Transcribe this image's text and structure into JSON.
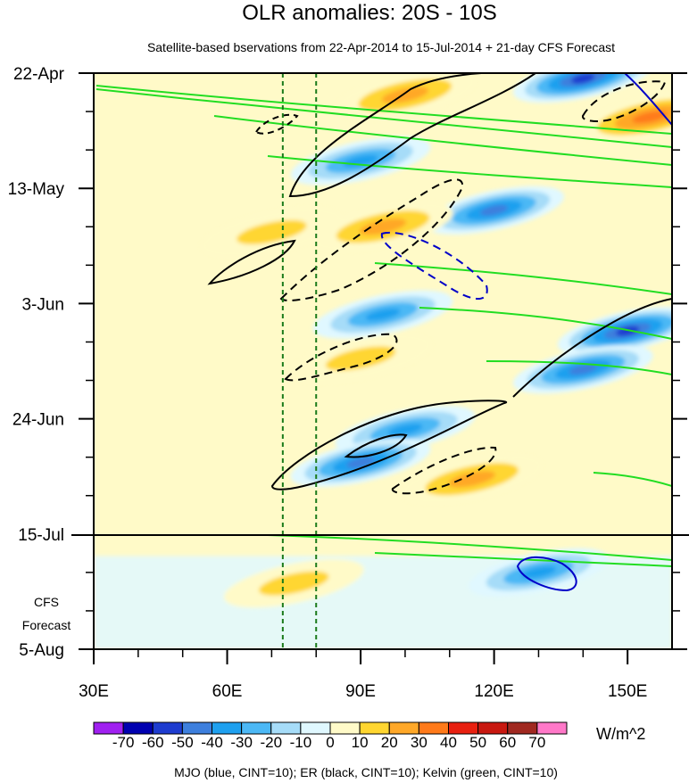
{
  "chart_data": {
    "type": "heatmap",
    "title": "OLR anomalies: 20S - 10S",
    "subtitle": "Satellite-based bservations from 22-Apr-2014 to 15-Jul-2014 + 21-day CFS Forecast",
    "x_ticks": [
      "30E",
      "60E",
      "90E",
      "120E",
      "150E"
    ],
    "x_tick_values": [
      30,
      60,
      90,
      120,
      150
    ],
    "x_range": [
      30,
      160
    ],
    "y_ticks": [
      "22-Apr",
      "13-May",
      "3-Jun",
      "24-Jun",
      "15-Jul",
      "5-Aug"
    ],
    "y_tick_days": [
      0,
      21,
      42,
      63,
      84,
      105
    ],
    "y_range_days": [
      0,
      105
    ],
    "observation_end_label": "15-Jul",
    "forecast_label_line1": "CFS",
    "forecast_label_line2": "Forecast",
    "reference_longitudes": [
      72.5,
      80
    ],
    "colorbar": {
      "labels": [
        "-70",
        "-60",
        "-50",
        "-40",
        "-30",
        "-20",
        "-10",
        "0",
        "10",
        "20",
        "30",
        "40",
        "50",
        "60",
        "70"
      ],
      "colors": [
        "#a020f0",
        "#0000b0",
        "#1e3ccf",
        "#3d7fdd",
        "#1ea0ef",
        "#4cb8f5",
        "#a6dcf8",
        "#e0f8ff",
        "#fffac8",
        "#ffd630",
        "#ffa828",
        "#ff7a1a",
        "#e82010",
        "#c81810",
        "#a02820",
        "#ff78c8"
      ],
      "units": "W/m^2"
    },
    "footer": "MJO (blue, CINT=10); ER (black, CINT=10); Kelvin (green, CINT=10)",
    "features": [
      {
        "kind": "negative_anomaly",
        "lon_center": 140,
        "day_center": 1,
        "strength": -60
      },
      {
        "kind": "negative_anomaly",
        "lon_center": 90,
        "day_center": 16,
        "strength": -40
      },
      {
        "kind": "negative_anomaly",
        "lon_center": 120,
        "day_center": 25,
        "strength": -50
      },
      {
        "kind": "negative_anomaly",
        "lon_center": 95,
        "day_center": 44,
        "strength": -40
      },
      {
        "kind": "negative_anomaly",
        "lon_center": 150,
        "day_center": 47,
        "strength": -60
      },
      {
        "kind": "negative_anomaly",
        "lon_center": 140,
        "day_center": 54,
        "strength": -50
      },
      {
        "kind": "negative_anomaly",
        "lon_center": 100,
        "day_center": 65,
        "strength": -40
      },
      {
        "kind": "negative_anomaly",
        "lon_center": 90,
        "day_center": 71,
        "strength": -50
      },
      {
        "kind": "negative_anomaly",
        "lon_center": 130,
        "day_center": 91,
        "strength": -40
      },
      {
        "kind": "positive_anomaly",
        "lon_center": 100,
        "day_center": 4,
        "strength": 30
      },
      {
        "kind": "positive_anomaly",
        "lon_center": 155,
        "day_center": 8,
        "strength": 40
      },
      {
        "kind": "positive_anomaly",
        "lon_center": 95,
        "day_center": 28,
        "strength": 30
      },
      {
        "kind": "positive_anomaly",
        "lon_center": 70,
        "day_center": 29,
        "strength": 20
      },
      {
        "kind": "positive_anomaly",
        "lon_center": 90,
        "day_center": 52,
        "strength": 20
      },
      {
        "kind": "positive_anomaly",
        "lon_center": 115,
        "day_center": 74,
        "strength": 30
      },
      {
        "kind": "positive_anomaly",
        "lon_center": 75,
        "day_center": 93,
        "strength": 20
      }
    ]
  }
}
